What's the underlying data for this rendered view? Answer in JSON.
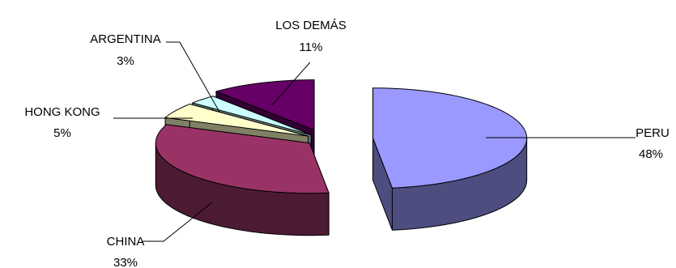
{
  "chart_data": {
    "type": "pie",
    "style": "3d-exploded",
    "title": "",
    "slices": [
      {
        "label": "PERU",
        "value": 48,
        "value_label": "48%",
        "color": "#9999ff",
        "side_color": "#4d4d80"
      },
      {
        "label": "CHINA",
        "value": 33,
        "value_label": "33%",
        "color": "#993366",
        "side_color": "#4d1a33"
      },
      {
        "label": "HONG KONG",
        "value": 5,
        "value_label": "5%",
        "color": "#ffffcc",
        "side_color": "#808066"
      },
      {
        "label": "ARGENTINA",
        "value": 3,
        "value_label": "3%",
        "color": "#ccffff",
        "side_color": "#668080"
      },
      {
        "label": "LOS DEMÁS",
        "value": 11,
        "value_label": "11%",
        "color": "#660066",
        "side_color": "#330033"
      }
    ]
  }
}
